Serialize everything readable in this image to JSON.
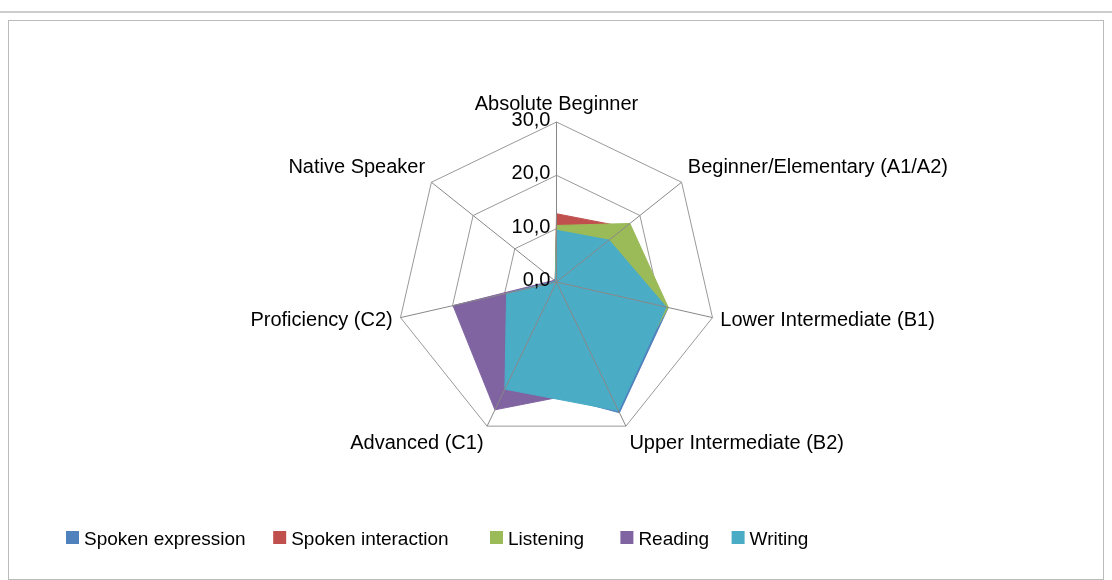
{
  "chart_data": {
    "type": "radar",
    "categories": [
      "Absolute Beginner",
      "Beginner/Elementary (A1/A2)",
      "Lower Intermediate  (B1)",
      "Upper Intermediate (B2)",
      "Advanced (C1)",
      "Proficiency (C2)",
      "Native Speaker"
    ],
    "ylim": [
      0,
      30
    ],
    "yticks": [
      {
        "value": 0,
        "label": "0,0"
      },
      {
        "value": 10,
        "label": "10,0"
      },
      {
        "value": 20,
        "label": "20,0"
      },
      {
        "value": 30,
        "label": "30,0"
      }
    ],
    "grid": true,
    "legend": "bottom",
    "series": [
      {
        "name": "Spoken expression",
        "color": "#4f81bd",
        "values": [
          9.5,
          12.5,
          21.5,
          27.2,
          21,
          9,
          0.3
        ]
      },
      {
        "name": "Spoken interaction",
        "color": "#c0504d",
        "values": [
          12.8,
          16.5,
          20,
          25,
          20,
          9,
          0.3
        ]
      },
      {
        "name": "Listening",
        "color": "#9bbb59",
        "values": [
          10.6,
          17.6,
          21.5,
          25,
          20,
          8,
          0.3
        ]
      },
      {
        "name": "Reading",
        "color": "#8064a2",
        "values": [
          1,
          8,
          18,
          22,
          26.6,
          19.9,
          0.5
        ]
      },
      {
        "name": "Writing",
        "color": "#4bacc6",
        "values": [
          9.7,
          12.6,
          21.1,
          26.8,
          22.3,
          9.6,
          0.2
        ]
      }
    ]
  }
}
